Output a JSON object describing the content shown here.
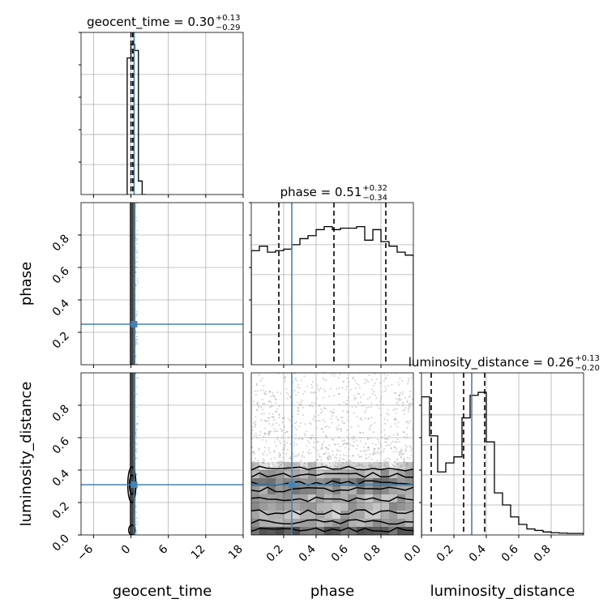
{
  "chart_data": {
    "type": "corner",
    "parameters": [
      "geocent_time",
      "phase",
      "luminosity_distance"
    ],
    "truths": {
      "geocent_time": 0.51,
      "phase": 0.25,
      "luminosity_distance": 0.31
    },
    "colors": {
      "truth": "#4682b4",
      "hist": "#000000",
      "grid": "#b0b0b0",
      "density": "#000000"
    },
    "grid": true,
    "panels": [
      {
        "id": "geocent_time-hist",
        "type": "histogram",
        "param": "geocent_time",
        "title": {
          "name": "geocent_time",
          "median": "0.30",
          "upper": "+0.13",
          "lower": "−0.29"
        },
        "xlim": [
          -8,
          18
        ],
        "bins": {
          "edges": [
            -0.6,
            0.0,
            0.6,
            1.2,
            1.8,
            2.4
          ],
          "counts": [
            0.91,
            1.0,
            0.96,
            0.09,
            0.0
          ]
        },
        "quantiles": [
          0.01,
          0.3,
          0.43
        ],
        "truth": 0.51
      },
      {
        "id": "phase-hist",
        "type": "histogram",
        "param": "phase",
        "title": {
          "name": "phase",
          "median": "0.51",
          "upper": "+0.32",
          "lower": "−0.34"
        },
        "xlim": [
          0.0,
          1.0
        ],
        "bins": {
          "edges": [
            0.0,
            0.05,
            0.1,
            0.15,
            0.2,
            0.25,
            0.3,
            0.35,
            0.4,
            0.45,
            0.5,
            0.55,
            0.6,
            0.65,
            0.7,
            0.75,
            0.8,
            0.85,
            0.9,
            0.95,
            1.0
          ],
          "counts": [
            0.76,
            0.79,
            0.75,
            0.76,
            0.77,
            0.8,
            0.84,
            0.86,
            0.9,
            0.92,
            0.9,
            0.91,
            0.91,
            0.92,
            0.83,
            0.9,
            0.82,
            0.79,
            0.75,
            0.73
          ]
        },
        "quantiles": [
          0.17,
          0.51,
          0.83
        ],
        "truth": 0.25
      },
      {
        "id": "luminosity_distance-hist",
        "type": "histogram",
        "param": "luminosity_distance",
        "title": {
          "name": "luminosity_distance",
          "median": "0.26",
          "upper": "+0.13",
          "lower": "−0.20"
        },
        "xlim": [
          0.0,
          1.0
        ],
        "bins": {
          "edges": [
            0.0,
            0.05,
            0.1,
            0.15,
            0.2,
            0.25,
            0.3,
            0.35,
            0.4,
            0.45,
            0.5,
            0.55,
            0.6,
            0.65,
            0.7,
            0.75,
            0.8,
            0.85,
            0.9,
            0.95,
            1.0
          ],
          "counts": [
            0.92,
            0.66,
            0.42,
            0.48,
            0.52,
            0.78,
            0.93,
            0.95,
            0.62,
            0.28,
            0.2,
            0.12,
            0.07,
            0.04,
            0.03,
            0.02,
            0.015,
            0.012,
            0.01,
            0.01
          ]
        },
        "quantiles": [
          0.06,
          0.26,
          0.39
        ],
        "truth": 0.31
      },
      {
        "id": "phase-vs-geocent_time",
        "type": "density2d",
        "xparam": "geocent_time",
        "yparam": "phase",
        "xlim": [
          -8,
          18
        ],
        "ylim": [
          0.0,
          1.0
        ],
        "truth": [
          0.51,
          0.25
        ]
      },
      {
        "id": "luminosity_distance-vs-geocent_time",
        "type": "density2d",
        "xparam": "geocent_time",
        "yparam": "luminosity_distance",
        "xlim": [
          -8,
          18
        ],
        "ylim": [
          0.0,
          1.0
        ],
        "truth": [
          0.51,
          0.31
        ]
      },
      {
        "id": "luminosity_distance-vs-phase",
        "type": "density2d",
        "xparam": "phase",
        "yparam": "luminosity_distance",
        "xlim": [
          0.0,
          1.0
        ],
        "ylim": [
          0.0,
          1.0
        ],
        "truth": [
          0.25,
          0.31
        ]
      }
    ],
    "axis_labels": {
      "x": [
        "geocent_time",
        "phase",
        "luminosity_distance"
      ],
      "y": [
        "phase",
        "luminosity_distance"
      ]
    },
    "ticks": {
      "geocent_time": [
        "−6",
        "0",
        "6",
        "12",
        "18"
      ],
      "geocent_time_values": [
        -6,
        0,
        6,
        12,
        18
      ],
      "phase": [
        "0.2",
        "0.4",
        "0.6",
        "0.8"
      ],
      "phase_values": [
        0.2,
        0.4,
        0.6,
        0.8
      ],
      "phase_y": [
        "0.2",
        "0.4",
        "0.6",
        "0.8"
      ],
      "luminosity_distance_y": [
        "0.0",
        "0.2",
        "0.4",
        "0.6",
        "0.8"
      ],
      "luminosity_distance_y_values": [
        0.0,
        0.2,
        0.4,
        0.6,
        0.8
      ],
      "luminosity_distance_x": [
        "0.0",
        "0.2",
        "0.4",
        "0.6",
        "0.8"
      ]
    }
  }
}
